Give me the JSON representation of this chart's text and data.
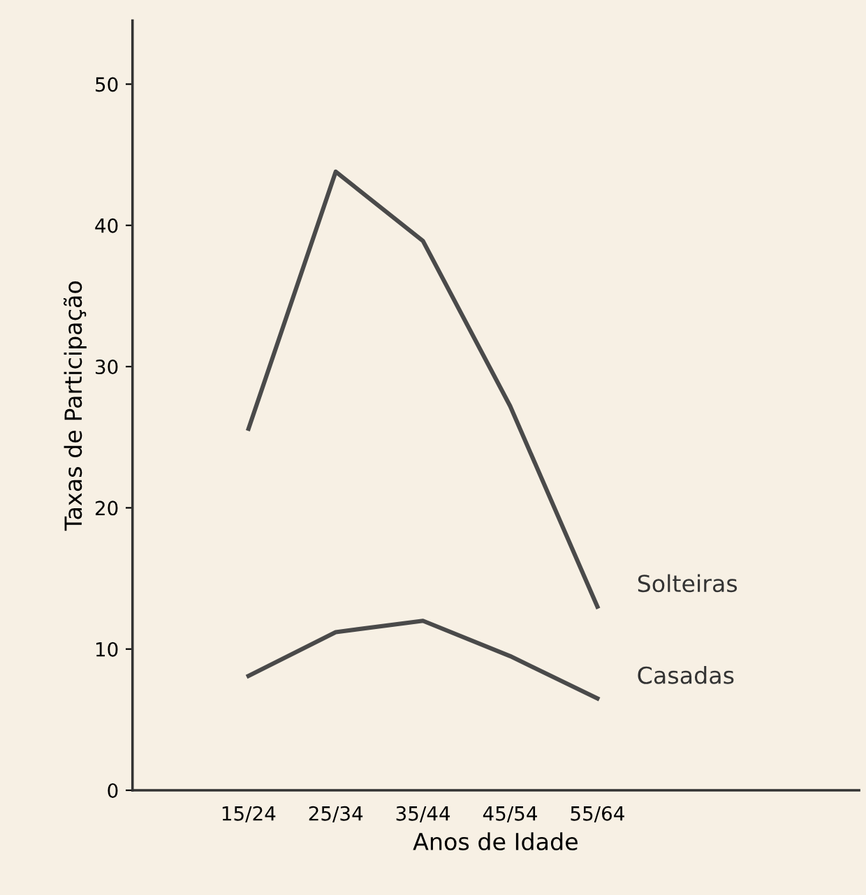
{
  "chart_data": {
    "type": "line",
    "xlabel": "Anos de Idade",
    "ylabel": "Taxas de Participação",
    "categories": [
      "15/24",
      "25/34",
      "35/44",
      "45/54",
      "55/64"
    ],
    "series": [
      {
        "name": "Solteiras",
        "color": "#4a4a4a",
        "values": [
          25.6,
          43.8,
          38.9,
          27.2,
          13.0
        ]
      },
      {
        "name": "Casadas",
        "color": "#4a4a4a",
        "values": [
          8.1,
          11.2,
          12.0,
          9.5,
          6.5
        ]
      }
    ],
    "ylim": [
      0,
      54.5
    ],
    "yticks": [
      0,
      10,
      20,
      30,
      40,
      50
    ],
    "grid": false,
    "legend": false,
    "marker": "none",
    "line_style": "solid"
  }
}
